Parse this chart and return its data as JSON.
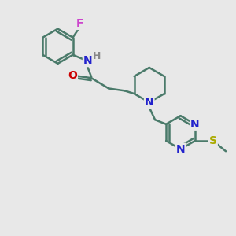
{
  "background_color": "#e8e8e8",
  "bond_color": "#4a7a6a",
  "n_color": "#2222cc",
  "o_color": "#cc0000",
  "s_color": "#aaaa00",
  "f_color": "#cc44cc",
  "h_color": "#888888",
  "line_width": 1.8,
  "font_size": 10,
  "figsize": [
    3.0,
    3.0
  ],
  "dpi": 100,
  "xlim": [
    0,
    10
  ],
  "ylim": [
    0,
    10
  ]
}
